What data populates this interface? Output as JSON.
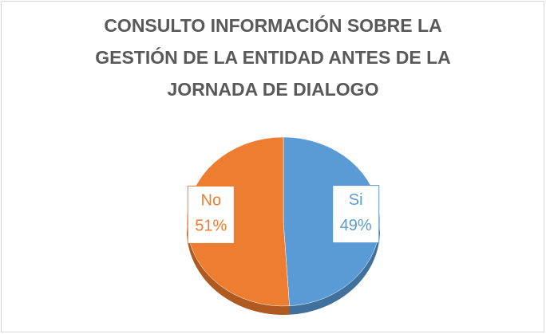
{
  "chart_data": {
    "type": "pie",
    "title": "CONSULTO INFORMACIÓN SOBRE LA GESTIÓN DE LA ENTIDAD ANTES DE LA JORNADA DE DIALOGO",
    "categories": [
      "Si",
      "No"
    ],
    "values": [
      49,
      51
    ],
    "value_labels": [
      "49%",
      "51%"
    ],
    "colors": [
      "#5b9bd5",
      "#ed7d31"
    ],
    "side_colors": [
      "#41719c",
      "#ae5a21"
    ]
  }
}
